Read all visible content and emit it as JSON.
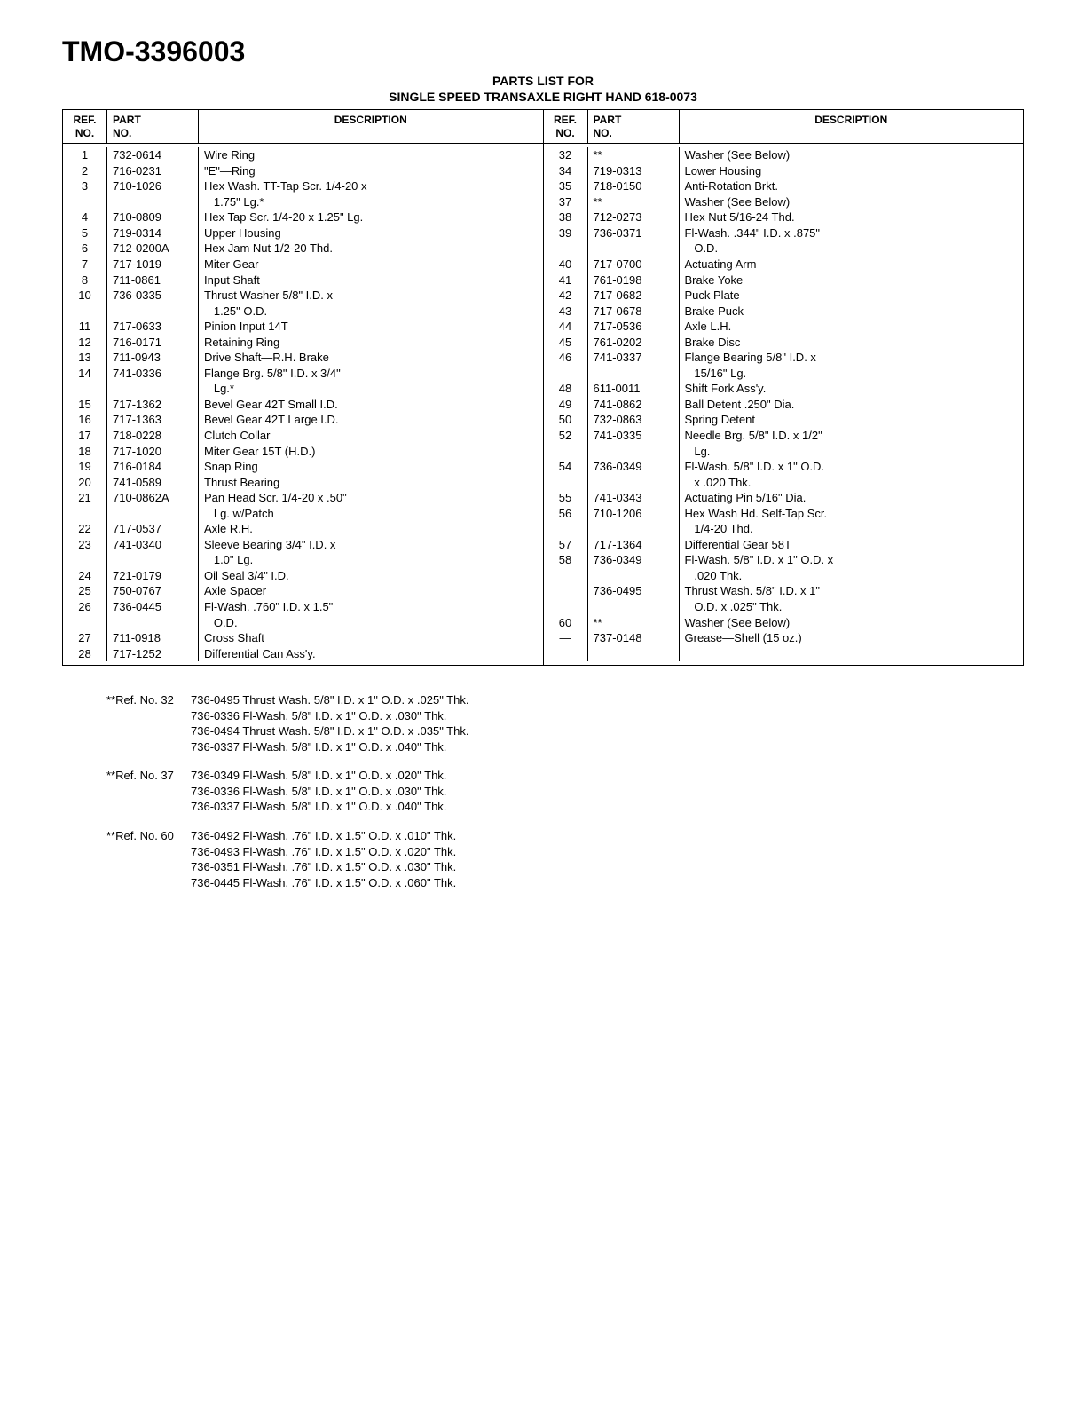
{
  "title": "TMO-3396003",
  "subtitle_line1": "PARTS LIST FOR",
  "subtitle_line2": "SINGLE SPEED TRANSAXLE RIGHT HAND 618-0073",
  "headers": {
    "ref": "REF.\nNO.",
    "part": "PART\nNO.",
    "desc": "DESCRIPTION"
  },
  "left_rows": [
    {
      "ref": "1",
      "part": "732-0614",
      "desc": "Wire Ring"
    },
    {
      "ref": "2",
      "part": "716-0231",
      "desc": "\"E\"—Ring"
    },
    {
      "ref": "3",
      "part": "710-1026",
      "desc": "Hex Wash. TT-Tap Scr. 1/4-20 x"
    },
    {
      "ref": "",
      "part": "",
      "desc": "   1.75\" Lg.*"
    },
    {
      "ref": "4",
      "part": "710-0809",
      "desc": "Hex Tap Scr. 1/4-20 x 1.25\" Lg."
    },
    {
      "ref": "5",
      "part": "719-0314",
      "desc": "Upper Housing"
    },
    {
      "ref": "6",
      "part": "712-0200A",
      "desc": "Hex Jam Nut 1/2-20 Thd."
    },
    {
      "ref": "7",
      "part": "717-1019",
      "desc": "Miter Gear"
    },
    {
      "ref": "8",
      "part": "711-0861",
      "desc": "Input Shaft"
    },
    {
      "ref": "10",
      "part": "736-0335",
      "desc": "Thrust Washer 5/8\" I.D. x"
    },
    {
      "ref": "",
      "part": "",
      "desc": "   1.25\" O.D."
    },
    {
      "ref": "11",
      "part": "717-0633",
      "desc": "Pinion Input 14T"
    },
    {
      "ref": "12",
      "part": "716-0171",
      "desc": "Retaining Ring"
    },
    {
      "ref": "13",
      "part": "711-0943",
      "desc": "Drive Shaft—R.H. Brake"
    },
    {
      "ref": "14",
      "part": "741-0336",
      "desc": "Flange Brg. 5/8\" I.D. x 3/4\""
    },
    {
      "ref": "",
      "part": "",
      "desc": "   Lg.*"
    },
    {
      "ref": "15",
      "part": "717-1362",
      "desc": "Bevel Gear 42T Small I.D."
    },
    {
      "ref": "16",
      "part": "717-1363",
      "desc": "Bevel Gear 42T Large I.D."
    },
    {
      "ref": "17",
      "part": "718-0228",
      "desc": "Clutch Collar"
    },
    {
      "ref": "18",
      "part": "717-1020",
      "desc": "Miter Gear 15T (H.D.)"
    },
    {
      "ref": "19",
      "part": "716-0184",
      "desc": "Snap Ring"
    },
    {
      "ref": "20",
      "part": "741-0589",
      "desc": "Thrust Bearing"
    },
    {
      "ref": "21",
      "part": "710-0862A",
      "desc": "Pan Head Scr. 1/4-20 x .50\""
    },
    {
      "ref": "",
      "part": "",
      "desc": "   Lg. w/Patch"
    },
    {
      "ref": "22",
      "part": "717-0537",
      "desc": "Axle R.H."
    },
    {
      "ref": "23",
      "part": "741-0340",
      "desc": "Sleeve Bearing 3/4\" I.D. x"
    },
    {
      "ref": "",
      "part": "",
      "desc": "   1.0\" Lg."
    },
    {
      "ref": "24",
      "part": "721-0179",
      "desc": "Oil Seal 3/4\" I.D."
    },
    {
      "ref": "25",
      "part": "750-0767",
      "desc": "Axle Spacer"
    },
    {
      "ref": "26",
      "part": "736-0445",
      "desc": "Fl-Wash. .760\" I.D. x 1.5\""
    },
    {
      "ref": "",
      "part": "",
      "desc": "   O.D."
    },
    {
      "ref": "27",
      "part": "711-0918",
      "desc": "Cross Shaft"
    },
    {
      "ref": "28",
      "part": "717-1252",
      "desc": "Differential Can Ass'y."
    }
  ],
  "right_rows": [
    {
      "ref": "32",
      "part": "**",
      "desc": "Washer (See Below)"
    },
    {
      "ref": "34",
      "part": "719-0313",
      "desc": "Lower Housing"
    },
    {
      "ref": "35",
      "part": "718-0150",
      "desc": "Anti-Rotation Brkt."
    },
    {
      "ref": "37",
      "part": "**",
      "desc": "Washer (See Below)"
    },
    {
      "ref": "38",
      "part": "712-0273",
      "desc": "Hex Nut 5/16-24 Thd."
    },
    {
      "ref": "39",
      "part": "736-0371",
      "desc": "Fl-Wash. .344\" I.D. x .875\""
    },
    {
      "ref": "",
      "part": "",
      "desc": "   O.D."
    },
    {
      "ref": "40",
      "part": "717-0700",
      "desc": "Actuating Arm"
    },
    {
      "ref": "41",
      "part": "761-0198",
      "desc": "Brake Yoke"
    },
    {
      "ref": "42",
      "part": "717-0682",
      "desc": "Puck Plate"
    },
    {
      "ref": "43",
      "part": "717-0678",
      "desc": "Brake Puck"
    },
    {
      "ref": "44",
      "part": "717-0536",
      "desc": "Axle L.H."
    },
    {
      "ref": "45",
      "part": "761-0202",
      "desc": "Brake Disc"
    },
    {
      "ref": "46",
      "part": "741-0337",
      "desc": "Flange Bearing 5/8\" I.D. x"
    },
    {
      "ref": "",
      "part": "",
      "desc": "   15/16\" Lg."
    },
    {
      "ref": "48",
      "part": "611-0011",
      "desc": "Shift Fork Ass'y."
    },
    {
      "ref": "49",
      "part": "741-0862",
      "desc": "Ball Detent .250\" Dia."
    },
    {
      "ref": "50",
      "part": "732-0863",
      "desc": "Spring Detent"
    },
    {
      "ref": "52",
      "part": "741-0335",
      "desc": "Needle Brg. 5/8\" I.D. x 1/2\""
    },
    {
      "ref": "",
      "part": "",
      "desc": "   Lg."
    },
    {
      "ref": "54",
      "part": "736-0349",
      "desc": "Fl-Wash. 5/8\" I.D. x 1\" O.D."
    },
    {
      "ref": "",
      "part": "",
      "desc": "   x .020 Thk."
    },
    {
      "ref": "55",
      "part": "741-0343",
      "desc": "Actuating Pin 5/16\" Dia."
    },
    {
      "ref": "56",
      "part": "710-1206",
      "desc": "Hex Wash Hd. Self-Tap Scr."
    },
    {
      "ref": "",
      "part": "",
      "desc": "   1/4-20 Thd."
    },
    {
      "ref": "57",
      "part": "717-1364",
      "desc": "Differential Gear 58T"
    },
    {
      "ref": "58",
      "part": "736-0349",
      "desc": "Fl-Wash. 5/8\" I.D. x 1\" O.D. x"
    },
    {
      "ref": "",
      "part": "",
      "desc": "   .020 Thk."
    },
    {
      "ref": "",
      "part": "736-0495",
      "desc": "Thrust Wash. 5/8\" I.D. x 1\""
    },
    {
      "ref": "",
      "part": "",
      "desc": "   O.D. x .025\" Thk."
    },
    {
      "ref": "60",
      "part": "**",
      "desc": "Washer (See Below)"
    },
    {
      "ref": "—",
      "part": "737-0148",
      "desc": "Grease—Shell (15 oz.)"
    },
    {
      "ref": "",
      "part": "",
      "desc": ""
    }
  ],
  "footnotes": [
    {
      "label": "**Ref. No. 32",
      "lines": [
        "736-0495 Thrust Wash. 5/8\" I.D. x 1\" O.D. x .025\" Thk.",
        "736-0336 Fl-Wash. 5/8\" I.D. x 1\" O.D. x .030\" Thk.",
        "736-0494 Thrust Wash. 5/8\" I.D. x 1\" O.D. x .035\" Thk.",
        "736-0337 Fl-Wash. 5/8\" I.D. x 1\" O.D. x .040\" Thk."
      ]
    },
    {
      "label": "**Ref. No. 37",
      "lines": [
        "736-0349 Fl-Wash. 5/8\" I.D. x 1\" O.D. x .020\" Thk.",
        "736-0336 Fl-Wash. 5/8\" I.D. x 1\" O.D. x .030\" Thk.",
        "736-0337 Fl-Wash. 5/8\" I.D. x 1\" O.D. x .040\" Thk."
      ]
    },
    {
      "label": "**Ref. No. 60",
      "lines": [
        "736-0492 Fl-Wash. .76\" I.D. x 1.5\" O.D. x .010\" Thk.",
        "736-0493 Fl-Wash. .76\" I.D. x 1.5\" O.D. x .020\" Thk.",
        "736-0351 Fl-Wash. .76\" I.D. x 1.5\" O.D. x .030\" Thk.",
        "736-0445 Fl-Wash. .76\" I.D. x 1.5\" O.D. x .060\" Thk."
      ]
    }
  ]
}
